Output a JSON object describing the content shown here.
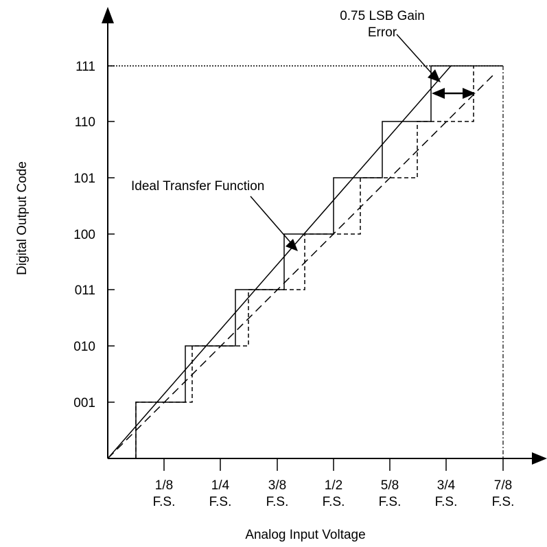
{
  "diagram": {
    "x_axis_title": "Analog Input Voltage",
    "y_axis_title": "Digital Output Code",
    "x_ticks": [
      {
        "line1": "1/8",
        "line2": "F.S."
      },
      {
        "line1": "1/4",
        "line2": "F.S."
      },
      {
        "line1": "3/8",
        "line2": "F.S."
      },
      {
        "line1": "1/2",
        "line2": "F.S."
      },
      {
        "line1": "5/8",
        "line2": "F.S."
      },
      {
        "line1": "3/4",
        "line2": "F.S."
      },
      {
        "line1": "7/8",
        "line2": "F.S."
      }
    ],
    "y_ticks": [
      "001",
      "010",
      "011",
      "100",
      "101",
      "110",
      "111"
    ],
    "annotations": {
      "ideal": "Ideal Transfer Function",
      "gain_line1": "0.75 LSB Gain",
      "gain_line2": "Error"
    },
    "legend": {
      "actual_stroke": "solid",
      "ideal_stroke": "dashed"
    },
    "colors": {
      "ink": "#000000",
      "background": "#ffffff"
    }
  }
}
